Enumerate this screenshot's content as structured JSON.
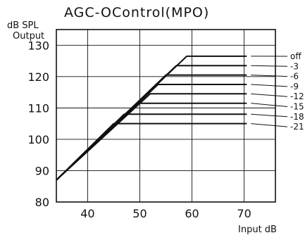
{
  "chart_data": {
    "type": "line",
    "title": "AGC-OControl(MPO)",
    "ylabel_line1": "dB SPL",
    "ylabel_line2": "Output",
    "xlabel": "Input dB",
    "xlim": [
      34,
      76
    ],
    "ylim": [
      80,
      135
    ],
    "x_ticks": [
      40,
      50,
      60,
      70
    ],
    "y_ticks": [
      80,
      90,
      100,
      110,
      120,
      130
    ],
    "grid": true,
    "series": [
      {
        "name": "off",
        "points": [
          [
            34,
            87
          ],
          [
            59,
            126.5
          ],
          [
            70.5,
            126.5
          ]
        ]
      },
      {
        "name": "-3",
        "points": [
          [
            34,
            87
          ],
          [
            57,
            123.5
          ],
          [
            70.5,
            123.5
          ]
        ]
      },
      {
        "name": "-6",
        "points": [
          [
            34,
            87
          ],
          [
            55,
            120.5
          ],
          [
            70.5,
            120.5
          ]
        ]
      },
      {
        "name": "-9",
        "points": [
          [
            34,
            87
          ],
          [
            53.5,
            117.5
          ],
          [
            70.5,
            117.5
          ]
        ]
      },
      {
        "name": "-12",
        "points": [
          [
            34,
            87
          ],
          [
            52,
            114.5
          ],
          [
            70.5,
            114.5
          ]
        ]
      },
      {
        "name": "-15",
        "points": [
          [
            34,
            87
          ],
          [
            50,
            111.5
          ],
          [
            70.5,
            111.5
          ]
        ]
      },
      {
        "name": "-18",
        "points": [
          [
            34,
            87
          ],
          [
            47,
            108
          ],
          [
            70.5,
            108
          ]
        ]
      },
      {
        "name": "-21",
        "points": [
          [
            34,
            87
          ],
          [
            45,
            105
          ],
          [
            70.5,
            105
          ]
        ]
      }
    ]
  }
}
